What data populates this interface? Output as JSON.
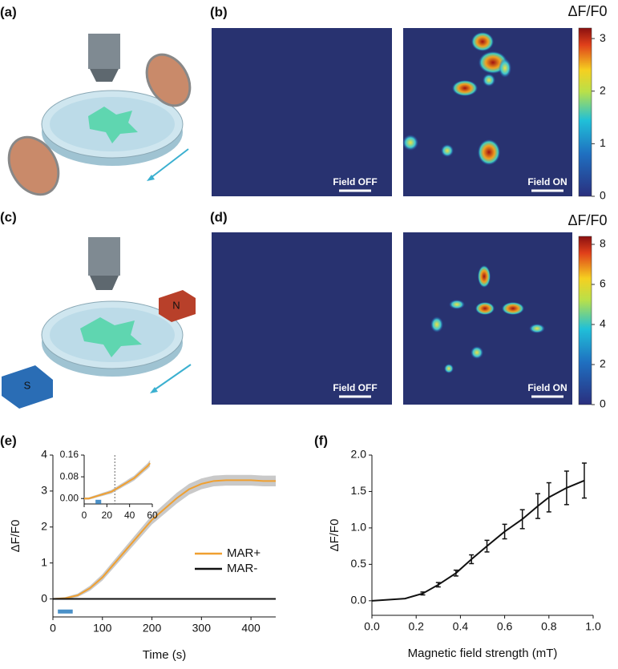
{
  "panels": [
    "(a)",
    "(b)",
    "(c)",
    "(d)",
    "(e)",
    "(f)"
  ],
  "magnets": [
    "S",
    "N"
  ],
  "images": [
    {
      "label": "Field OFF"
    },
    {
      "label": "Field ON"
    },
    {
      "label": "Field OFF"
    },
    {
      "label": "Field ON"
    }
  ],
  "colorbars": [
    {
      "title": "ΔF/F0",
      "lim": [
        0,
        3.2
      ],
      "ticks": [
        0,
        1,
        2,
        3
      ]
    },
    {
      "title": "ΔF/F0",
      "lim": [
        0,
        8.4
      ],
      "ticks": [
        0,
        2,
        4,
        6,
        8
      ]
    }
  ],
  "chart_data": [
    {
      "type": "line",
      "xlabel": "Time (s)",
      "ylabel": "ΔF/F0",
      "x": [
        0,
        25,
        50,
        75,
        100,
        125,
        150,
        175,
        200,
        225,
        250,
        275,
        300,
        325,
        350,
        375,
        400,
        425,
        450
      ],
      "series": [
        {
          "name": "MAR+",
          "color": "#f0a030",
          "band_color": "#bbbbbb",
          "values": [
            0,
            0.02,
            0.1,
            0.3,
            0.6,
            1.0,
            1.4,
            1.8,
            2.2,
            2.5,
            2.8,
            3.05,
            3.2,
            3.28,
            3.3,
            3.3,
            3.3,
            3.28,
            3.28
          ],
          "error": [
            0.02,
            0.03,
            0.05,
            0.07,
            0.09,
            0.1,
            0.11,
            0.12,
            0.13,
            0.14,
            0.15,
            0.15,
            0.15,
            0.15,
            0.15,
            0.15,
            0.15,
            0.15,
            0.15
          ]
        },
        {
          "name": "MAR-",
          "color": "#111111",
          "values": [
            0,
            0,
            0,
            0,
            0,
            0,
            0,
            0,
            0,
            0,
            0,
            0,
            0,
            0,
            0,
            0,
            0,
            0,
            0
          ]
        }
      ],
      "stimulus": {
        "x": [
          10,
          40
        ],
        "y": -0.35,
        "color": "#4a90c8"
      },
      "xlim": [
        0,
        450
      ],
      "xticks": [
        0,
        100,
        200,
        300,
        400
      ],
      "ylim": [
        -0.5,
        4
      ],
      "yticks": [
        0,
        1,
        2,
        3,
        4
      ],
      "legend": "right"
    },
    {
      "type": "line",
      "x": [
        0,
        4,
        8,
        12,
        16,
        20,
        24,
        28,
        32,
        36,
        40,
        44,
        48,
        52,
        56,
        58
      ],
      "series": [
        {
          "color": "#f0a030",
          "band_color": "#bbbbbb",
          "values": [
            0,
            0,
            0.005,
            0.01,
            0.015,
            0.02,
            0.025,
            0.035,
            0.045,
            0.055,
            0.065,
            0.075,
            0.09,
            0.105,
            0.12,
            0.13
          ],
          "error": [
            0.004,
            0.004,
            0.005,
            0.005,
            0.006,
            0.006,
            0.007,
            0.007,
            0.008,
            0.008,
            0.009,
            0.009,
            0.01,
            0.01,
            0.011,
            0.012
          ]
        }
      ],
      "stimulus": {
        "x": [
          10,
          15
        ],
        "y": -0.012,
        "color": "#4a90c8"
      },
      "vline": 27,
      "xlim": [
        0,
        60
      ],
      "xticks": [
        0,
        20,
        40,
        60
      ],
      "ylim": [
        -0.02,
        0.16
      ],
      "yticks": [
        {
          "value": 0,
          "label": "0.00"
        },
        0.08,
        0.16
      ]
    },
    {
      "type": "line",
      "xlabel": "Magnetic field strength (mT)",
      "ylabel": "ΔF/F0",
      "x": [
        0,
        0.15,
        0.23,
        0.3,
        0.38,
        0.45,
        0.52,
        0.6,
        0.68,
        0.75,
        0.8,
        0.88,
        0.96
      ],
      "series": [
        {
          "color": "#111111",
          "values": [
            0,
            0.03,
            0.1,
            0.22,
            0.38,
            0.57,
            0.75,
            0.95,
            1.12,
            1.3,
            1.42,
            1.55,
            1.65
          ],
          "errors": [
            0,
            0,
            0.02,
            0.03,
            0.04,
            0.06,
            0.08,
            0.1,
            0.13,
            0.17,
            0.2,
            0.23,
            0.24
          ]
        }
      ],
      "xlim": [
        0,
        1
      ],
      "xticks": [
        {
          "value": 0,
          "label": "0.0"
        },
        0.2,
        0.4,
        0.6,
        0.8,
        {
          "value": 1,
          "label": "1.0"
        }
      ],
      "ylim": [
        -0.2,
        2
      ],
      "yticks": [
        {
          "value": 0,
          "label": "0.0"
        },
        0.5,
        {
          "value": 1,
          "label": "1.0"
        },
        1.5,
        {
          "value": 2,
          "label": "2.0"
        }
      ]
    }
  ]
}
